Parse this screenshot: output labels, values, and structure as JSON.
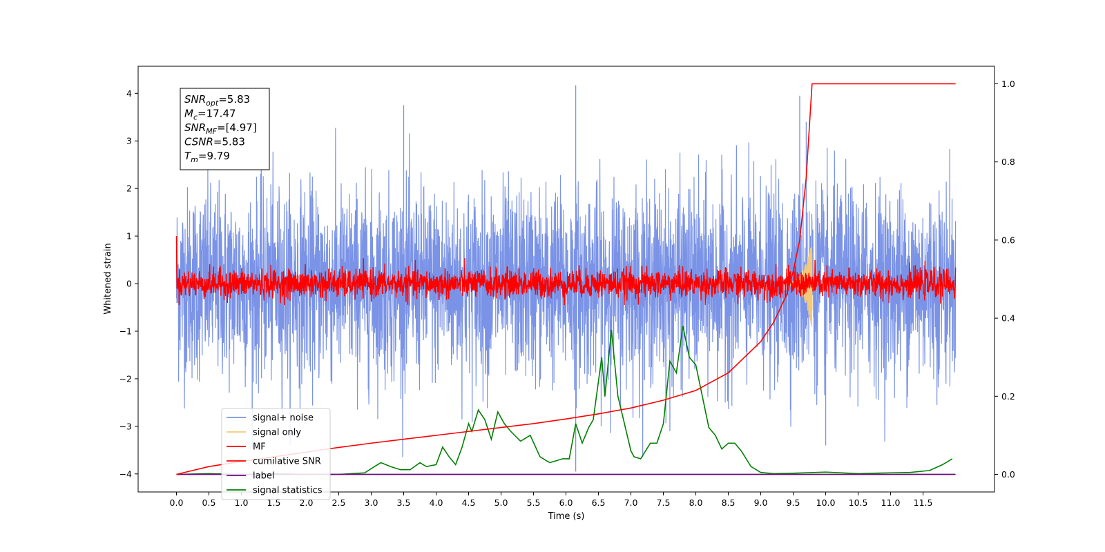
{
  "chart_data": {
    "type": "line",
    "xlabel": "Time (s)",
    "ylabel": "Whitened strain",
    "xlim": [
      -0.59,
      12.6
    ],
    "ylim": [
      -4.38,
      4.57
    ],
    "y2lim": [
      -0.045,
      1.045
    ],
    "grid": false,
    "legend_position": "lower-left",
    "x_ticks": [
      "0.0",
      "0.5",
      "1.0",
      "1.5",
      "2.0",
      "2.5",
      "3.0",
      "3.5",
      "4.0",
      "4.5",
      "5.0",
      "5.5",
      "6.0",
      "6.5",
      "7.0",
      "7.5",
      "8.0",
      "8.5",
      "9.0",
      "9.5",
      "10.0",
      "10.5",
      "11.0",
      "11.5"
    ],
    "y_ticks": [
      "−4",
      "−3",
      "−2",
      "−1",
      "0",
      "1",
      "2",
      "3",
      "4"
    ],
    "y2_ticks": [
      "0.0",
      "0.2",
      "0.4",
      "0.6",
      "0.8",
      "1.0"
    ],
    "annotation": {
      "lines": [
        {
          "base": "SNR",
          "sub": "opt",
          "value": "=5.83"
        },
        {
          "base": "M",
          "sub": "c",
          "value": "=17.47"
        },
        {
          "base": "SNR",
          "sub": "MF",
          "value": "=[4.97]"
        },
        {
          "base": "CSNR",
          "sub": "",
          "value": "=5.83"
        },
        {
          "base": "T",
          "sub": "m",
          "value": "=9.79"
        }
      ]
    },
    "series": [
      {
        "name": "signal+ noise",
        "color": "#7a93e6",
        "axis": "left",
        "x_range": [
          0,
          12
        ],
        "noise_sigma": 1.0,
        "peak_max": 4.17,
        "peak_min": -3.95
      },
      {
        "name": "signal only",
        "color": "#f5c97a",
        "axis": "left",
        "chirp_start": 9.4,
        "chirp_end": 9.79,
        "peak_max": 0.9,
        "peak_min": -1.0
      },
      {
        "name": "MF",
        "color": "#ff0000",
        "axis": "left",
        "x_range": [
          0,
          12
        ],
        "noise_sigma": 0.15,
        "start_value": 1.0
      },
      {
        "name": "cumilative SNR",
        "color": "#ff0000",
        "axis": "right",
        "x": [
          0,
          0.5,
          1,
          1.5,
          2,
          2.5,
          3,
          3.5,
          4,
          4.5,
          5,
          5.5,
          6,
          6.5,
          7,
          7.5,
          8,
          8.5,
          9,
          9.2,
          9.4,
          9.5,
          9.6,
          9.7,
          9.79,
          10,
          11,
          12
        ],
        "y": [
          0.0,
          0.02,
          0.033,
          0.045,
          0.057,
          0.069,
          0.08,
          0.09,
          0.1,
          0.11,
          0.12,
          0.13,
          0.142,
          0.155,
          0.17,
          0.19,
          0.215,
          0.26,
          0.34,
          0.39,
          0.46,
          0.52,
          0.6,
          0.76,
          1.0,
          1.0,
          1.0,
          1.0
        ]
      },
      {
        "name": "label",
        "color": "#6a0d7a",
        "axis": "right",
        "x": [
          0,
          12
        ],
        "y": [
          0.0,
          0.0
        ]
      },
      {
        "name": "signal statistics",
        "color": "#008000",
        "axis": "right",
        "x": [
          0,
          0.5,
          1,
          1.5,
          2,
          2.5,
          2.9,
          3.05,
          3.15,
          3.3,
          3.45,
          3.6,
          3.75,
          3.85,
          4.0,
          4.1,
          4.2,
          4.3,
          4.4,
          4.5,
          4.55,
          4.65,
          4.75,
          4.85,
          4.95,
          5.05,
          5.15,
          5.3,
          5.45,
          5.6,
          5.75,
          5.85,
          5.95,
          6.05,
          6.15,
          6.25,
          6.35,
          6.42,
          6.55,
          6.6,
          6.7,
          6.8,
          6.9,
          7.0,
          7.05,
          7.15,
          7.3,
          7.4,
          7.5,
          7.6,
          7.7,
          7.8,
          7.9,
          8.0,
          8.1,
          8.2,
          8.3,
          8.4,
          8.5,
          8.6,
          8.7,
          8.85,
          9.0,
          9.2,
          9.5,
          10.0,
          10.5,
          11.0,
          11.3,
          11.6,
          11.8,
          11.95
        ],
        "y": [
          0.0,
          0.002,
          0.0,
          0.002,
          0.0,
          0.0,
          0.004,
          0.02,
          0.03,
          0.02,
          0.012,
          0.012,
          0.03,
          0.02,
          0.025,
          0.07,
          0.045,
          0.025,
          0.07,
          0.13,
          0.11,
          0.165,
          0.14,
          0.09,
          0.16,
          0.13,
          0.11,
          0.085,
          0.1,
          0.045,
          0.03,
          0.035,
          0.04,
          0.04,
          0.13,
          0.08,
          0.12,
          0.14,
          0.3,
          0.2,
          0.37,
          0.2,
          0.13,
          0.06,
          0.045,
          0.04,
          0.08,
          0.08,
          0.13,
          0.29,
          0.26,
          0.38,
          0.3,
          0.28,
          0.2,
          0.12,
          0.1,
          0.065,
          0.08,
          0.08,
          0.06,
          0.02,
          0.005,
          0.002,
          0.003,
          0.006,
          0.002,
          0.004,
          0.005,
          0.01,
          0.025,
          0.04
        ]
      }
    ]
  }
}
